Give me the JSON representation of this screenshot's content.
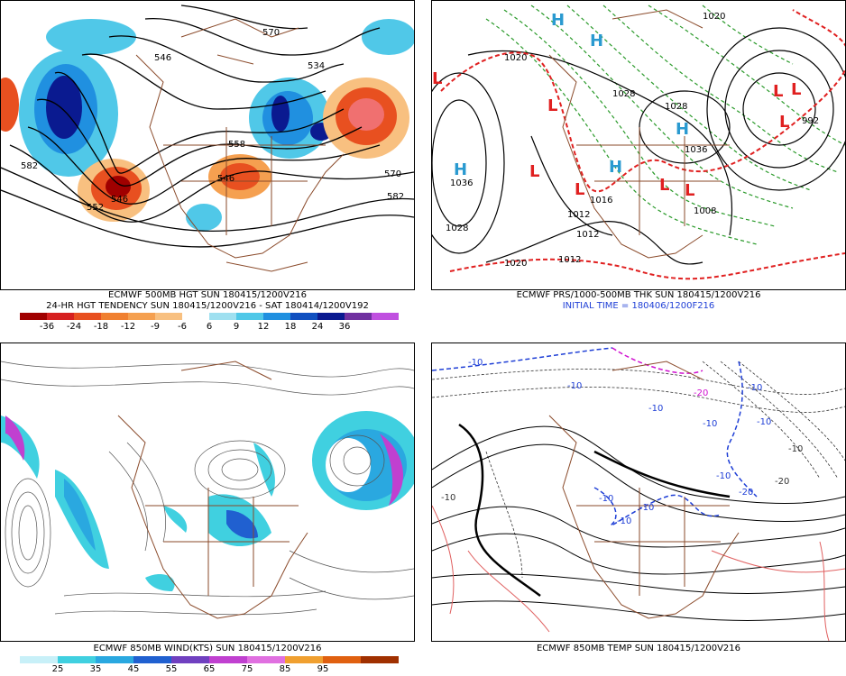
{
  "panels": {
    "hgt500": {
      "caption1": "ECMWF 500MB HGT SUN 180415/1200V216",
      "caption2": "24-HR HGT TENDENCY SUN 180415/1200V216 - SAT 180414/1200V192",
      "contour_labels": [
        "582",
        "558",
        "546",
        "570",
        "582",
        "546",
        "534",
        "570",
        "552",
        "546"
      ],
      "colorbar": {
        "labels": [
          "-36",
          "-24",
          "-18",
          "-12",
          "-9",
          "-6",
          "6",
          "9",
          "12",
          "18",
          "24",
          "36"
        ],
        "colors": [
          "#a00000",
          "#d62020",
          "#e85020",
          "#f08030",
          "#f5a050",
          "#f8c080",
          "#ffffff",
          "#9fe0f0",
          "#50c8e8",
          "#2090e0",
          "#1050c0",
          "#0a1a90",
          "#7030a0",
          "#c050e0"
        ]
      }
    },
    "prs": {
      "caption1": "ECMWF PRS/1000-500MB THK SUN 180415/1200V216",
      "caption2": "INITIAL TIME = 180406/1200F216",
      "pressure_labels": [
        "1020",
        "1028",
        "1036",
        "1020",
        "1012",
        "1012",
        "1016",
        "1008",
        "1012",
        "1028",
        "992",
        "1020",
        "1036",
        "1028"
      ],
      "highs_lows": [
        "H",
        "H",
        "H",
        "H",
        "H",
        "L",
        "L",
        "L",
        "L",
        "L",
        "L",
        "L",
        "L",
        "L"
      ]
    },
    "wind850": {
      "caption1": "ECMWF 850MB WIND(KTS) SUN 180415/1200V216",
      "colorbar": {
        "labels": [
          "25",
          "35",
          "45",
          "55",
          "65",
          "75",
          "85",
          "95"
        ],
        "colors": [
          "#c8f0f8",
          "#40d0e0",
          "#2aa8e0",
          "#2060d0",
          "#7040c0",
          "#c040d0",
          "#e070e0",
          "#f0a030",
          "#e06010",
          "#a03000"
        ]
      }
    },
    "temp850": {
      "caption1": "ECMWF 850MB TEMP SUN 180415/1200V216",
      "contour_labels": [
        "-10",
        "-10",
        "-20",
        "-10",
        "-10",
        "-10",
        "-10",
        "-20",
        "-10",
        "-10",
        "-10",
        "-20",
        "-10",
        "-10",
        "-10"
      ]
    }
  }
}
